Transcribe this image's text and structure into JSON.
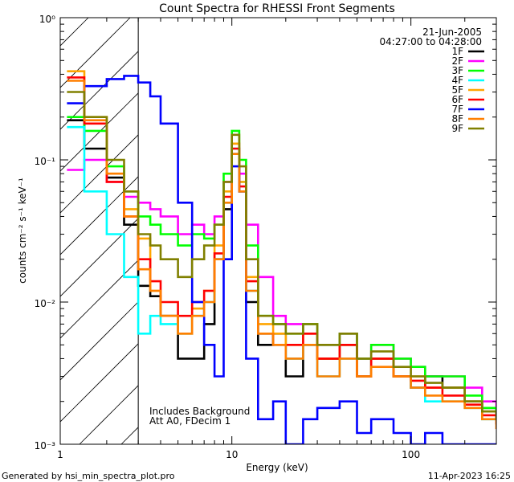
{
  "chart_data": {
    "type": "line",
    "title": "Count Spectra for RHESSI Front Segments",
    "date": "21-Jun-2005",
    "time_range": "04:27:00 to 04:28:00",
    "xlabel": "Energy (keV)",
    "ylabel": "counts cm⁻² s⁻¹ keV⁻¹",
    "x_scale": "log",
    "y_scale": "log",
    "xlim": [
      1.1,
      300
    ],
    "ylim": [
      0.001,
      1.0
    ],
    "x_ticks": [
      {
        "v": 1,
        "label": "1"
      },
      {
        "v": 10,
        "label": "10"
      },
      {
        "v": 100,
        "label": "100"
      }
    ],
    "y_ticks": [
      {
        "v": 0.001,
        "label": "10⁻³"
      },
      {
        "v": 0.01,
        "label": "10⁻²"
      },
      {
        "v": 0.1,
        "label": "10⁻¹"
      },
      {
        "v": 1,
        "label": "10⁰"
      }
    ],
    "hatch_region_keV": [
      1.1,
      3.0
    ],
    "annotations": [
      "Includes Background",
      "Att A0, FDecim 1"
    ],
    "series": [
      {
        "name": "1F",
        "color": "#000000",
        "energies": [
          1.2,
          1.5,
          2.0,
          2.5,
          3.0,
          3.5,
          4.0,
          5.0,
          6.0,
          7.0,
          8.0,
          9.0,
          10.0,
          11.0,
          12.0,
          14.0,
          17.0,
          20.0,
          25.0,
          30.0,
          40.0,
          50.0,
          60.0,
          80.0,
          100.0,
          120.0,
          150.0,
          200.0,
          250.0,
          300.0
        ],
        "values": [
          0.19,
          0.12,
          0.075,
          0.035,
          0.013,
          0.011,
          0.008,
          0.004,
          0.004,
          0.007,
          0.02,
          0.045,
          0.11,
          0.06,
          0.01,
          0.005,
          0.006,
          0.003,
          0.005,
          0.004,
          0.005,
          0.003,
          0.004,
          0.003,
          0.0025,
          0.003,
          0.0025,
          0.002,
          0.0018,
          0.0015
        ]
      },
      {
        "name": "2F",
        "color": "#ff00ff",
        "energies": [
          1.2,
          1.5,
          2.0,
          2.5,
          3.0,
          3.5,
          4.0,
          5.0,
          6.0,
          7.0,
          8.0,
          9.0,
          10.0,
          11.0,
          12.0,
          14.0,
          17.0,
          20.0,
          25.0,
          30.0,
          40.0,
          50.0,
          60.0,
          80.0,
          100.0,
          120.0,
          150.0,
          200.0,
          250.0,
          300.0
        ],
        "values": [
          0.085,
          0.1,
          0.07,
          0.055,
          0.05,
          0.045,
          0.04,
          0.03,
          0.035,
          0.03,
          0.04,
          0.07,
          0.13,
          0.08,
          0.035,
          0.015,
          0.008,
          0.007,
          0.006,
          0.005,
          0.006,
          0.004,
          0.005,
          0.004,
          0.0035,
          0.003,
          0.003,
          0.0025,
          0.002,
          0.0018
        ]
      },
      {
        "name": "3F",
        "color": "#00ff00",
        "energies": [
          1.2,
          1.5,
          2.0,
          2.5,
          3.0,
          3.5,
          4.0,
          5.0,
          6.0,
          7.0,
          8.0,
          9.0,
          10.0,
          11.0,
          12.0,
          14.0,
          17.0,
          20.0,
          25.0,
          30.0,
          40.0,
          50.0,
          60.0,
          80.0,
          100.0,
          120.0,
          150.0,
          200.0,
          250.0,
          300.0
        ],
        "values": [
          0.2,
          0.16,
          0.09,
          0.06,
          0.04,
          0.035,
          0.03,
          0.025,
          0.03,
          0.028,
          0.035,
          0.08,
          0.16,
          0.1,
          0.025,
          0.008,
          0.007,
          0.006,
          0.007,
          0.005,
          0.006,
          0.004,
          0.005,
          0.004,
          0.0035,
          0.003,
          0.003,
          0.0022,
          0.0018,
          0.0016
        ]
      },
      {
        "name": "4F",
        "color": "#00ffff",
        "energies": [
          1.2,
          1.5,
          2.0,
          2.5,
          3.0,
          3.5,
          4.0,
          5.0,
          6.0,
          7.0,
          8.0,
          9.0,
          10.0,
          11.0,
          12.0,
          14.0,
          17.0,
          20.0,
          25.0,
          30.0,
          40.0,
          50.0,
          60.0,
          80.0,
          100.0,
          120.0,
          150.0,
          200.0,
          250.0,
          300.0
        ],
        "values": [
          0.17,
          0.06,
          0.03,
          0.015,
          0.006,
          0.008,
          0.007,
          0.006,
          0.008,
          0.01,
          0.02,
          0.05,
          0.12,
          0.07,
          0.012,
          0.006,
          0.005,
          0.004,
          0.005,
          0.003,
          0.004,
          0.003,
          0.004,
          0.003,
          0.0025,
          0.002,
          0.002,
          0.0018,
          0.0015,
          0.0014
        ]
      },
      {
        "name": "5F",
        "color": "#ffa500",
        "energies": [
          1.2,
          1.5,
          2.0,
          2.5,
          3.0,
          3.5,
          4.0,
          5.0,
          6.0,
          7.0,
          8.0,
          9.0,
          10.0,
          11.0,
          12.0,
          14.0,
          17.0,
          20.0,
          25.0,
          30.0,
          40.0,
          50.0,
          60.0,
          80.0,
          100.0,
          120.0,
          150.0,
          200.0,
          250.0,
          300.0
        ],
        "values": [
          0.42,
          0.2,
          0.08,
          0.045,
          0.028,
          0.012,
          0.008,
          0.006,
          0.009,
          0.012,
          0.025,
          0.06,
          0.13,
          0.07,
          0.015,
          0.007,
          0.006,
          0.005,
          0.006,
          0.004,
          0.005,
          0.003,
          0.004,
          0.003,
          0.003,
          0.0025,
          0.0025,
          0.002,
          0.0017,
          0.0015
        ]
      },
      {
        "name": "6F",
        "color": "#ff0000",
        "energies": [
          1.2,
          1.5,
          2.0,
          2.5,
          3.0,
          3.5,
          4.0,
          5.0,
          6.0,
          7.0,
          8.0,
          9.0,
          10.0,
          11.0,
          12.0,
          14.0,
          17.0,
          20.0,
          25.0,
          30.0,
          40.0,
          50.0,
          60.0,
          80.0,
          100.0,
          120.0,
          150.0,
          200.0,
          250.0,
          300.0
        ],
        "values": [
          0.38,
          0.18,
          0.07,
          0.04,
          0.02,
          0.014,
          0.01,
          0.008,
          0.01,
          0.012,
          0.022,
          0.055,
          0.12,
          0.065,
          0.014,
          0.006,
          0.005,
          0.005,
          0.006,
          0.004,
          0.005,
          0.003,
          0.004,
          0.003,
          0.0028,
          0.0025,
          0.0022,
          0.0019,
          0.0016,
          0.0014
        ]
      },
      {
        "name": "7F",
        "color": "#0000ff",
        "energies": [
          1.2,
          1.5,
          2.0,
          2.5,
          3.0,
          3.5,
          4.0,
          5.0,
          6.0,
          7.0,
          8.0,
          9.0,
          10.0,
          11.0,
          12.0,
          14.0,
          17.0,
          20.0,
          25.0,
          30.0,
          40.0,
          50.0,
          60.0,
          80.0,
          100.0,
          120.0,
          150.0,
          200.0,
          250.0,
          300.0
        ],
        "values": [
          0.25,
          0.33,
          0.37,
          0.39,
          0.35,
          0.28,
          0.18,
          0.05,
          0.01,
          0.005,
          0.003,
          0.02,
          0.09,
          0.06,
          0.004,
          0.0015,
          0.002,
          0.001,
          0.0015,
          0.0018,
          0.002,
          0.0012,
          0.0015,
          0.0012,
          0.001,
          0.0012,
          0.001,
          0.001,
          0.001,
          0.001
        ]
      },
      {
        "name": "8F",
        "color": "#ff7f00",
        "energies": [
          1.2,
          1.5,
          2.0,
          2.5,
          3.0,
          3.5,
          4.0,
          5.0,
          6.0,
          7.0,
          8.0,
          9.0,
          10.0,
          11.0,
          12.0,
          14.0,
          17.0,
          20.0,
          25.0,
          30.0,
          40.0,
          50.0,
          60.0,
          80.0,
          100.0,
          120.0,
          150.0,
          200.0,
          250.0,
          300.0
        ],
        "values": [
          0.36,
          0.19,
          0.08,
          0.04,
          0.017,
          0.012,
          0.008,
          0.006,
          0.008,
          0.01,
          0.02,
          0.05,
          0.11,
          0.06,
          0.012,
          0.006,
          0.005,
          0.004,
          0.005,
          0.003,
          0.004,
          0.003,
          0.0035,
          0.003,
          0.0025,
          0.0022,
          0.002,
          0.0018,
          0.0015,
          0.0013
        ]
      },
      {
        "name": "9F",
        "color": "#808000",
        "energies": [
          1.2,
          1.5,
          2.0,
          2.5,
          3.0,
          3.5,
          4.0,
          5.0,
          6.0,
          7.0,
          8.0,
          9.0,
          10.0,
          11.0,
          12.0,
          14.0,
          17.0,
          20.0,
          25.0,
          30.0,
          40.0,
          50.0,
          60.0,
          80.0,
          100.0,
          120.0,
          150.0,
          200.0,
          250.0,
          300.0
        ],
        "values": [
          0.3,
          0.2,
          0.1,
          0.06,
          0.03,
          0.025,
          0.02,
          0.015,
          0.02,
          0.025,
          0.035,
          0.07,
          0.15,
          0.09,
          0.02,
          0.008,
          0.007,
          0.006,
          0.007,
          0.005,
          0.006,
          0.004,
          0.0045,
          0.0035,
          0.003,
          0.0027,
          0.0025,
          0.002,
          0.0017,
          0.0015
        ]
      }
    ]
  },
  "footer": {
    "generated_by": "Generated by hsi_min_spectra_plot.pro",
    "timestamp": "11-Apr-2023 16:25"
  }
}
